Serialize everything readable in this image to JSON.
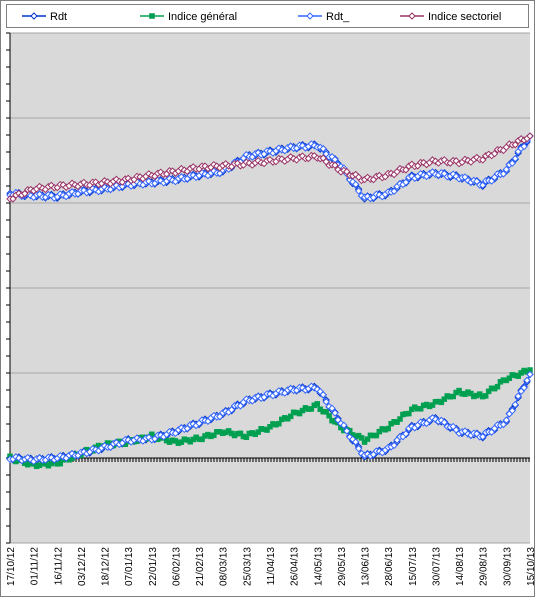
{
  "chart_data": {
    "type": "line",
    "title": "",
    "xlabel": "",
    "ylabel": "",
    "grid": true,
    "legend_position": "top",
    "plot_background": "#d9d9d9",
    "categories": [
      "17/10/12",
      "01/11/12",
      "16/11/12",
      "03/12/12",
      "18/12/12",
      "07/01/13",
      "22/01/13",
      "06/02/13",
      "21/02/13",
      "08/03/13",
      "25/03/13",
      "11/04/13",
      "26/04/13",
      "14/05/13",
      "29/05/13",
      "13/06/13",
      "28/06/13",
      "15/07/13",
      "30/07/13",
      "14/08/13",
      "29/08/13",
      "30/09/13",
      "15/10/13"
    ],
    "panels": [
      {
        "name": "upper",
        "series": [
          {
            "name": "Rdt",
            "color": "#0033cc",
            "marker": "diamond",
            "values": [
              0.1,
              0.08,
              0.07,
              0.12,
              0.15,
              0.2,
              0.22,
              0.25,
              0.3,
              0.34,
              0.5,
              0.55,
              0.6,
              0.62,
              0.4,
              0.05,
              0.1,
              0.28,
              0.32,
              0.28,
              0.2,
              0.35,
              0.72
            ]
          },
          {
            "name": "Rdt_",
            "color": "#3366ff",
            "marker": "diamond",
            "values": [
              0.1,
              0.08,
              0.07,
              0.12,
              0.15,
              0.2,
              0.22,
              0.25,
              0.3,
              0.34,
              0.5,
              0.55,
              0.6,
              0.62,
              0.4,
              0.05,
              0.1,
              0.28,
              0.32,
              0.28,
              0.2,
              0.35,
              0.72
            ]
          },
          {
            "name": "Indice sectoriel",
            "color": "#993366",
            "marker": "diamond",
            "values": [
              0.05,
              0.15,
              0.18,
              0.2,
              0.22,
              0.25,
              0.3,
              0.34,
              0.38,
              0.4,
              0.42,
              0.45,
              0.48,
              0.5,
              0.35,
              0.25,
              0.3,
              0.4,
              0.45,
              0.44,
              0.48,
              0.6,
              0.72
            ]
          }
        ]
      },
      {
        "name": "lower",
        "series": [
          {
            "name": "Rdt",
            "color": "#0033cc",
            "marker": "diamond",
            "values": [
              0.0,
              -0.02,
              0.0,
              0.05,
              0.12,
              0.2,
              0.22,
              0.3,
              0.4,
              0.5,
              0.65,
              0.72,
              0.78,
              0.8,
              0.4,
              0.02,
              0.1,
              0.35,
              0.45,
              0.3,
              0.25,
              0.42,
              0.95
            ]
          },
          {
            "name": "Indice général",
            "color": "#00a050",
            "marker": "square",
            "values": [
              0.0,
              -0.08,
              -0.06,
              0.05,
              0.15,
              0.18,
              0.25,
              0.18,
              0.22,
              0.3,
              0.25,
              0.35,
              0.5,
              0.6,
              0.35,
              0.2,
              0.35,
              0.55,
              0.62,
              0.75,
              0.7,
              0.9,
              1.0
            ]
          },
          {
            "name": "Rdt_",
            "color": "#3366ff",
            "marker": "diamond",
            "values": [
              0.0,
              -0.02,
              0.0,
              0.05,
              0.12,
              0.2,
              0.22,
              0.3,
              0.4,
              0.5,
              0.65,
              0.72,
              0.78,
              0.8,
              0.4,
              0.02,
              0.1,
              0.35,
              0.45,
              0.3,
              0.25,
              0.42,
              0.95
            ]
          }
        ]
      }
    ],
    "legend": [
      {
        "label": "Rdt",
        "color": "#0033cc",
        "marker": "diamond"
      },
      {
        "label": "Indice général",
        "color": "#00a050",
        "marker": "square"
      },
      {
        "label": "Rdt_",
        "color": "#3366ff",
        "marker": "diamond"
      },
      {
        "label": "Indice sectoriel",
        "color": "#993366",
        "marker": "diamond"
      }
    ]
  }
}
